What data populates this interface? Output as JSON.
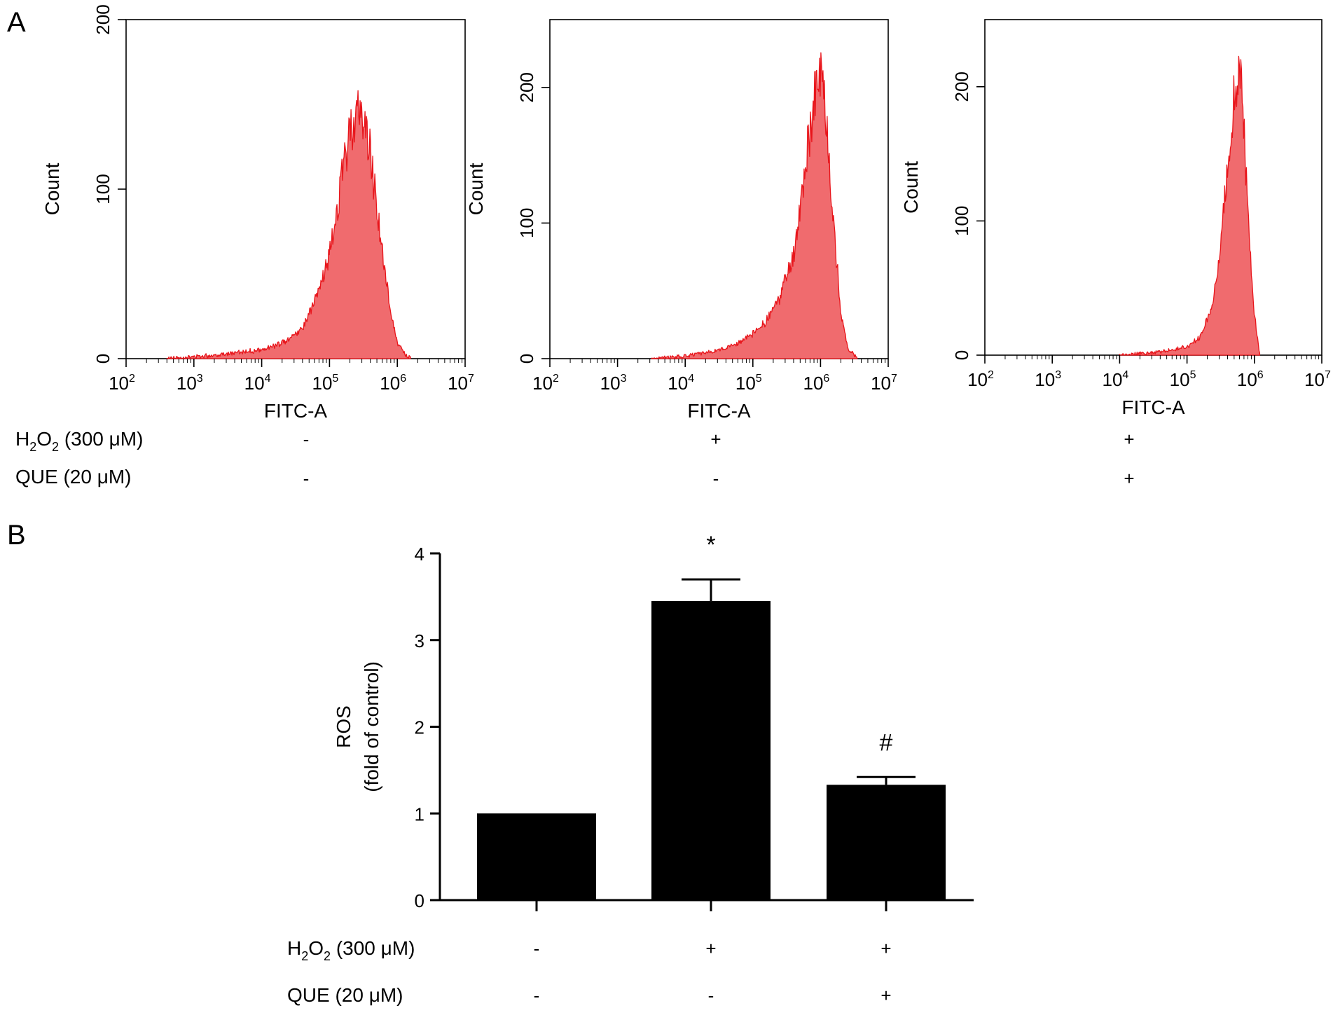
{
  "panels": {
    "a_label": "A",
    "b_label": "B"
  },
  "conditions": {
    "rows": [
      {
        "label_main": "H",
        "label_sub1": "2",
        "label_mid": "O",
        "label_sub2": "2",
        "label_tail": " (300 μM)",
        "values": [
          "-",
          "+",
          "+"
        ]
      },
      {
        "label_main": "QUE (20 μM)",
        "values": [
          "-",
          "-",
          "+"
        ]
      }
    ]
  },
  "chart_data": [
    {
      "type": "area",
      "panel": "A",
      "xlabel": "FITC-A",
      "ylabel": "Count",
      "x_scale": "log",
      "xlim": [
        100,
        10000000
      ],
      "ylim": [
        0,
        200
      ],
      "x_ticks": [
        2,
        3,
        4,
        5,
        6,
        7
      ],
      "y_ticks": [
        0,
        100,
        200
      ],
      "fill_color": "#f06b6e",
      "line_color": "#e8151b",
      "peak_log10_x": 5.45,
      "peak_count": 147,
      "x": [
        2.6,
        3.0,
        3.5,
        4.0,
        4.3,
        4.6,
        4.8,
        5.0,
        5.1,
        5.2,
        5.3,
        5.4,
        5.5,
        5.6,
        5.7,
        5.8,
        5.9,
        6.0,
        6.1,
        6.2
      ],
      "y": [
        0,
        1,
        3,
        5,
        9,
        18,
        35,
        60,
        85,
        110,
        135,
        145,
        142,
        122,
        90,
        55,
        28,
        10,
        3,
        0
      ]
    },
    {
      "type": "area",
      "panel": "A",
      "xlabel": "FITC-A",
      "ylabel": "Count",
      "x_scale": "log",
      "xlim": [
        100,
        10000000
      ],
      "ylim": [
        0,
        250
      ],
      "x_ticks": [
        2,
        3,
        4,
        5,
        6,
        7
      ],
      "y_ticks": [
        0,
        100,
        200
      ],
      "fill_color": "#f06b6e",
      "line_color": "#e8151b",
      "peak_log10_x": 6.0,
      "peak_count": 205,
      "x": [
        3.5,
        4.0,
        4.5,
        4.8,
        5.0,
        5.2,
        5.4,
        5.6,
        5.7,
        5.8,
        5.9,
        6.0,
        6.05,
        6.1,
        6.2,
        6.3,
        6.4,
        6.55
      ],
      "y": [
        0,
        2,
        6,
        12,
        18,
        28,
        45,
        75,
        110,
        150,
        190,
        205,
        195,
        165,
        95,
        35,
        8,
        0
      ]
    },
    {
      "type": "area",
      "panel": "A",
      "xlabel": "FITC-A",
      "ylabel": "Count",
      "x_scale": "log",
      "xlim": [
        100,
        10000000
      ],
      "ylim": [
        0,
        250
      ],
      "x_ticks": [
        2,
        3,
        4,
        5,
        6,
        7
      ],
      "y_ticks": [
        0,
        100,
        200
      ],
      "fill_color": "#f06b6e",
      "line_color": "#e8151b",
      "peak_log10_x": 5.75,
      "peak_count": 213,
      "x": [
        4.0,
        4.5,
        4.8,
        5.0,
        5.2,
        5.35,
        5.45,
        5.55,
        5.62,
        5.7,
        5.75,
        5.8,
        5.85,
        5.9,
        6.0,
        6.08
      ],
      "y": [
        0,
        2,
        4,
        6,
        14,
        32,
        60,
        110,
        150,
        195,
        213,
        200,
        160,
        110,
        30,
        0
      ]
    },
    {
      "type": "bar",
      "panel": "B",
      "ylabel_line1": "ROS",
      "ylabel_line2": "(fold of control)",
      "ylim": [
        0,
        4
      ],
      "y_ticks": [
        0,
        1,
        2,
        3,
        4
      ],
      "categories": [
        "",
        "",
        ""
      ],
      "values": [
        1.0,
        3.45,
        1.33
      ],
      "errors": [
        0.0,
        0.25,
        0.09
      ],
      "annotations": [
        "",
        "*",
        "#"
      ],
      "bar_color": "#000000"
    }
  ]
}
